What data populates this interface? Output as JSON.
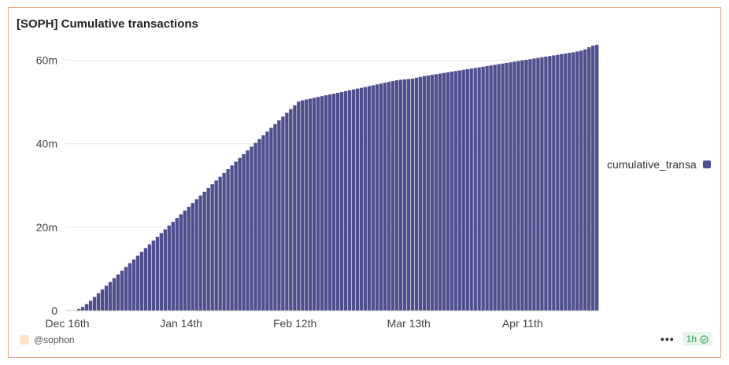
{
  "card": {
    "title": "[SOPH] Cumulative transactions",
    "author": "@sophon",
    "refresh_label": "1h",
    "more_icon": "more-dots-icon",
    "status_icon": "check-circle-icon"
  },
  "colors": {
    "series": "#4f4f8e",
    "border": "#f0a991",
    "grid": "#e6e6e6",
    "badge_bg": "#e6f6ea",
    "badge_fg": "#2f9e55"
  },
  "chart_data": {
    "type": "bar",
    "title": "[SOPH] Cumulative transactions",
    "xlabel": "",
    "ylabel": "",
    "ylim": [
      0,
      65000000
    ],
    "yticks": [
      0,
      20000000,
      40000000,
      60000000
    ],
    "ytick_labels": [
      "0",
      "20m",
      "40m",
      "60m"
    ],
    "xtick_labels": [
      "Dec 16th",
      "Jan 14th",
      "Feb 12th",
      "Mar 13th",
      "Apr 11th"
    ],
    "xtick_days": [
      0,
      29,
      58,
      87,
      116
    ],
    "grid": true,
    "legend_position": "right",
    "start_date": "2024-12-16",
    "series": [
      {
        "name": "cumulative_transa",
        "values": [
          0,
          50000,
          100000,
          400000,
          900000,
          1600000,
          2400000,
          3300000,
          4200000,
          5100000,
          6000000,
          6900000,
          7800000,
          8700000,
          9600000,
          10500000,
          11400000,
          12300000,
          13200000,
          14100000,
          15000000,
          15900000,
          16800000,
          17700000,
          18600000,
          19500000,
          20400000,
          21300000,
          22200000,
          23100000,
          24000000,
          24900000,
          25800000,
          26700000,
          27600000,
          28500000,
          29400000,
          30300000,
          31200000,
          32100000,
          33000000,
          33900000,
          34800000,
          35700000,
          36600000,
          37500000,
          38400000,
          39300000,
          40200000,
          41100000,
          42000000,
          42900000,
          43800000,
          44700000,
          45600000,
          46500000,
          47400000,
          48300000,
          49200000,
          50100000,
          50400000,
          50600000,
          50800000,
          51000000,
          51200000,
          51400000,
          51600000,
          51800000,
          52000000,
          52200000,
          52400000,
          52600000,
          52800000,
          53000000,
          53200000,
          53400000,
          53600000,
          53800000,
          54000000,
          54200000,
          54400000,
          54600000,
          54800000,
          55000000,
          55200000,
          55300000,
          55400000,
          55500000,
          55600000,
          55800000,
          56000000,
          56200000,
          56350000,
          56500000,
          56650000,
          56800000,
          56950000,
          57100000,
          57250000,
          57400000,
          57550000,
          57700000,
          57850000,
          58000000,
          58150000,
          58300000,
          58450000,
          58600000,
          58750000,
          58900000,
          59050000,
          59200000,
          59350000,
          59500000,
          59650000,
          59800000,
          59950000,
          60100000,
          60250000,
          60400000,
          60550000,
          60700000,
          60850000,
          61000000,
          61150000,
          61300000,
          61450000,
          61600000,
          61750000,
          61900000,
          62100000,
          62300000,
          62600000,
          63100000,
          63500000,
          63700000
        ]
      }
    ]
  }
}
